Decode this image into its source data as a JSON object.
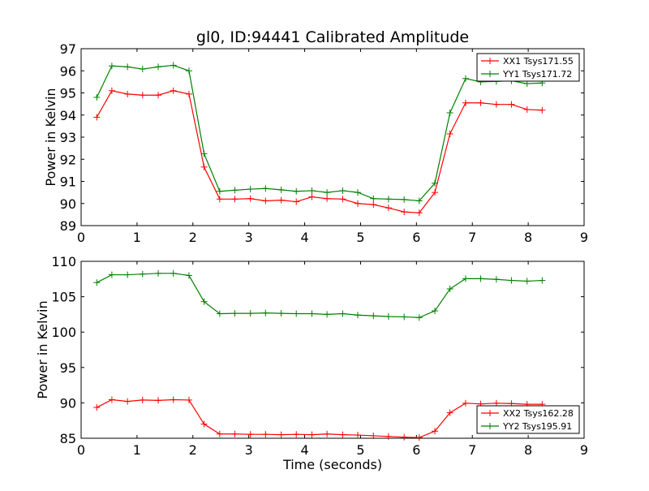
{
  "chart_data": [
    {
      "type": "line",
      "title": "gl0, ID:94441 Calibrated Amplitude",
      "xlabel": "",
      "ylabel": "Power in Kelvin",
      "xlim": [
        0,
        9
      ],
      "ylim": [
        89,
        97
      ],
      "xticks": [
        "0",
        "1",
        "2",
        "3",
        "4",
        "5",
        "6",
        "7",
        "8",
        "9"
      ],
      "yticks": [
        "89",
        "90",
        "91",
        "92",
        "93",
        "94",
        "95",
        "96",
        "97"
      ],
      "grid": false,
      "legend_position": "top-right",
      "x": [
        0.28,
        0.55,
        0.83,
        1.1,
        1.38,
        1.65,
        1.93,
        2.2,
        2.48,
        2.75,
        3.03,
        3.3,
        3.58,
        3.85,
        4.13,
        4.4,
        4.68,
        4.95,
        5.23,
        5.5,
        5.78,
        6.05,
        6.33,
        6.6,
        6.88,
        7.15,
        7.43,
        7.7,
        7.98,
        8.25
      ],
      "series": [
        {
          "name": "XX1 Tsys171.55",
          "color": "#ff0000",
          "values": [
            93.9,
            95.1,
            94.95,
            94.9,
            94.9,
            95.1,
            94.95,
            91.65,
            90.2,
            90.2,
            90.22,
            90.12,
            90.15,
            90.08,
            90.3,
            90.22,
            90.2,
            90.0,
            89.95,
            89.8,
            89.62,
            89.58,
            90.5,
            93.15,
            94.55,
            94.55,
            94.48,
            94.48,
            94.25,
            94.22
          ]
        },
        {
          "name": "YY1 Tsys171.72",
          "color": "#008000",
          "values": [
            94.8,
            96.22,
            96.18,
            96.08,
            96.18,
            96.25,
            96.0,
            92.25,
            90.55,
            90.6,
            90.65,
            90.68,
            90.62,
            90.55,
            90.58,
            90.5,
            90.58,
            90.5,
            90.22,
            90.2,
            90.18,
            90.12,
            90.92,
            94.1,
            95.65,
            95.5,
            95.52,
            95.55,
            95.42,
            95.45
          ]
        }
      ]
    },
    {
      "type": "line",
      "title": "",
      "xlabel": "Time (seconds)",
      "ylabel": "Power in Kelvin",
      "xlim": [
        0,
        9
      ],
      "ylim": [
        85,
        110
      ],
      "xticks": [
        "0",
        "1",
        "2",
        "3",
        "4",
        "5",
        "6",
        "7",
        "8",
        "9"
      ],
      "yticks": [
        "85",
        "90",
        "95",
        "100",
        "105",
        "110"
      ],
      "grid": false,
      "legend_position": "bottom-right",
      "x": [
        0.28,
        0.55,
        0.83,
        1.1,
        1.38,
        1.65,
        1.93,
        2.2,
        2.48,
        2.75,
        3.03,
        3.3,
        3.58,
        3.85,
        4.13,
        4.4,
        4.68,
        4.95,
        5.23,
        5.5,
        5.78,
        6.05,
        6.33,
        6.6,
        6.88,
        7.15,
        7.43,
        7.7,
        7.98,
        8.25
      ],
      "series": [
        {
          "name": "XX2 Tsys162.28",
          "color": "#ff0000",
          "values": [
            89.35,
            90.45,
            90.2,
            90.4,
            90.35,
            90.45,
            90.4,
            87.0,
            85.6,
            85.6,
            85.55,
            85.55,
            85.5,
            85.55,
            85.5,
            85.6,
            85.5,
            85.45,
            85.35,
            85.25,
            85.15,
            85.1,
            86.0,
            88.6,
            89.95,
            89.85,
            89.95,
            89.9,
            89.8,
            89.8
          ]
        },
        {
          "name": "YY2 Tsys195.91",
          "color": "#008000",
          "values": [
            107.0,
            108.1,
            108.1,
            108.2,
            108.3,
            108.3,
            108.0,
            104.3,
            102.6,
            102.65,
            102.65,
            102.7,
            102.65,
            102.6,
            102.6,
            102.5,
            102.6,
            102.4,
            102.3,
            102.2,
            102.15,
            102.05,
            103.0,
            106.1,
            107.55,
            107.55,
            107.45,
            107.3,
            107.2,
            107.3
          ]
        }
      ]
    }
  ]
}
